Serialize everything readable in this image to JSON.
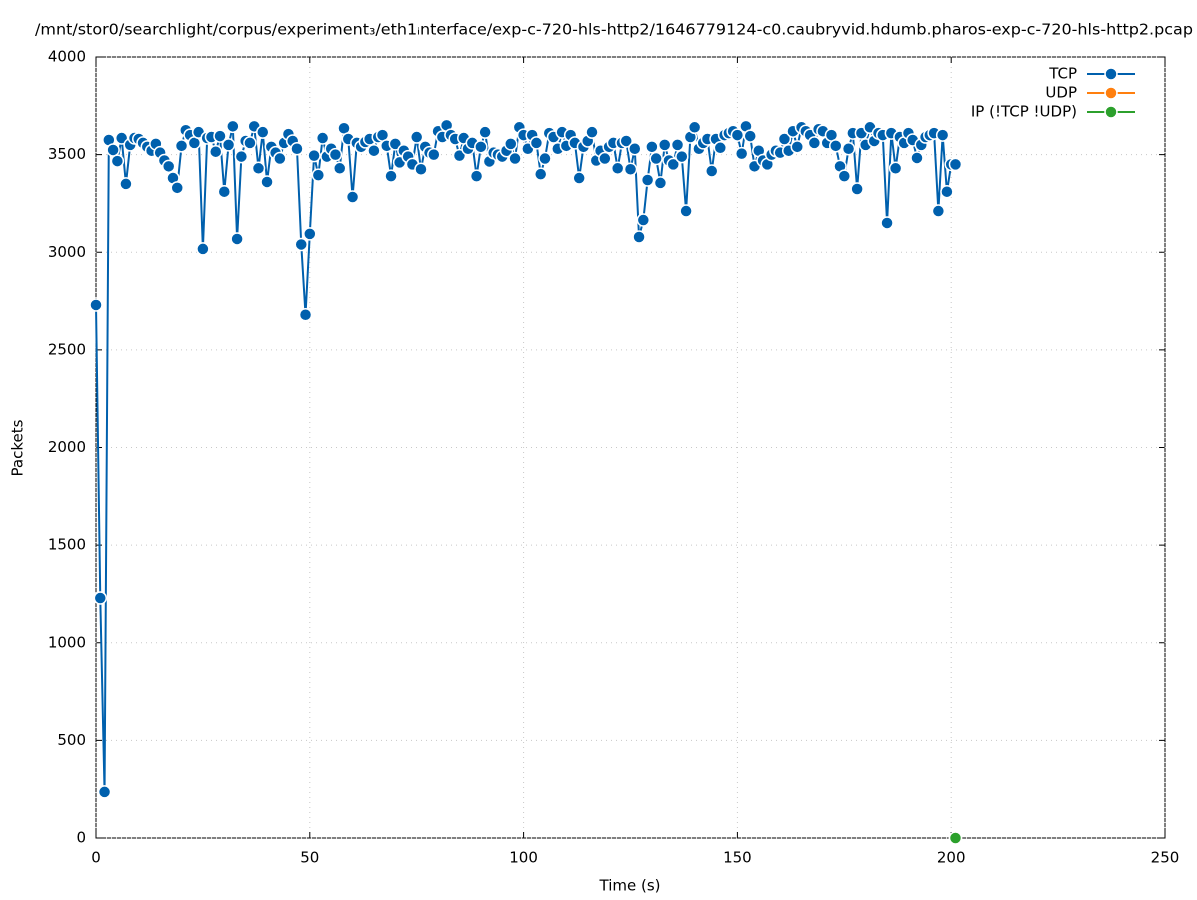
{
  "chart_data": {
    "type": "line",
    "title": "/mnt/stor0/searchlight/corpus/experiment₃/eth1ᵢnterface/exp-c-720-hls-http2/1646779124-c0.caubryvid.hdumb.pharos-exp-c-720-hls-http2.pcap",
    "xlabel": "Time (s)",
    "ylabel": "Packets",
    "xlim": [
      0,
      250
    ],
    "xticks": [
      0,
      50,
      100,
      150,
      200,
      250
    ],
    "ylim": [
      0,
      4000
    ],
    "yticks": [
      0,
      500,
      1000,
      1500,
      2000,
      2500,
      3000,
      3500,
      4000
    ],
    "grid": true,
    "legend": "top-right",
    "series": [
      {
        "name": "TCP",
        "color": "#0060ad",
        "x": [
          0,
          1,
          2,
          3,
          4,
          5,
          6,
          7,
          8,
          9,
          10,
          11,
          12,
          13,
          14,
          15,
          16,
          17,
          18,
          19,
          20,
          21,
          22,
          23,
          24,
          25,
          26,
          27,
          28,
          29,
          30,
          31,
          32,
          33,
          34,
          35,
          36,
          37,
          38,
          39,
          40,
          41,
          42,
          43,
          44,
          45,
          46,
          47,
          48,
          49,
          50,
          51,
          52,
          53,
          54,
          55,
          56,
          57,
          58,
          59,
          60,
          61,
          62,
          63,
          64,
          65,
          66,
          67,
          68,
          69,
          70,
          71,
          72,
          73,
          74,
          75,
          76,
          77,
          78,
          79,
          80,
          81,
          82,
          83,
          84,
          85,
          86,
          87,
          88,
          89,
          90,
          91,
          92,
          93,
          94,
          95,
          96,
          97,
          98,
          99,
          100,
          101,
          102,
          103,
          104,
          105,
          106,
          107,
          108,
          109,
          110,
          111,
          112,
          113,
          114,
          115,
          116,
          117,
          118,
          119,
          120,
          121,
          122,
          123,
          124,
          125,
          126,
          127,
          128,
          129,
          130,
          131,
          132,
          133,
          134,
          135,
          136,
          137,
          138,
          139,
          140,
          141,
          142,
          143,
          144,
          145,
          146,
          147,
          148,
          149,
          150,
          151,
          152,
          153,
          154,
          155,
          156,
          157,
          158,
          159,
          160,
          161,
          162,
          163,
          164,
          165,
          166,
          167,
          168,
          169,
          170,
          171,
          172,
          173,
          174,
          175,
          176,
          177,
          178,
          179,
          180,
          181,
          182,
          183,
          184,
          185,
          186,
          187,
          188,
          189,
          190,
          191,
          192,
          193,
          194,
          195,
          196,
          197,
          198,
          199,
          200,
          201
        ],
        "values": [
          2730,
          1229,
          236,
          3575,
          3524,
          3467,
          3585,
          3350,
          3550,
          3585,
          3580,
          3560,
          3540,
          3520,
          3555,
          3510,
          3470,
          3440,
          3380,
          3330,
          3545,
          3625,
          3600,
          3560,
          3615,
          3017,
          3585,
          3590,
          3515,
          3595,
          3310,
          3550,
          3645,
          3068,
          3490,
          3570,
          3560,
          3645,
          3430,
          3615,
          3360,
          3540,
          3510,
          3480,
          3560,
          3605,
          3570,
          3530,
          3040,
          2680,
          3094,
          3495,
          3395,
          3585,
          3490,
          3530,
          3500,
          3430,
          3635,
          3580,
          3283,
          3560,
          3540,
          3565,
          3580,
          3520,
          3590,
          3600,
          3545,
          3390,
          3555,
          3460,
          3520,
          3490,
          3450,
          3590,
          3425,
          3540,
          3510,
          3500,
          3620,
          3590,
          3650,
          3600,
          3580,
          3495,
          3585,
          3530,
          3560,
          3390,
          3540,
          3615,
          3465,
          3510,
          3500,
          3490,
          3520,
          3555,
          3480,
          3640,
          3600,
          3530,
          3600,
          3560,
          3400,
          3480,
          3610,
          3590,
          3530,
          3615,
          3545,
          3600,
          3560,
          3380,
          3540,
          3570,
          3615,
          3470,
          3520,
          3480,
          3540,
          3560,
          3430,
          3560,
          3570,
          3425,
          3530,
          3078,
          3165,
          3370,
          3540,
          3480,
          3355,
          3550,
          3470,
          3450,
          3550,
          3490,
          3211,
          3590,
          3640,
          3530,
          3560,
          3580,
          3416,
          3580,
          3535,
          3600,
          3610,
          3620,
          3600,
          3505,
          3645,
          3595,
          3440,
          3520,
          3470,
          3450,
          3500,
          3520,
          3510,
          3580,
          3520,
          3620,
          3540,
          3640,
          3620,
          3600,
          3560,
          3630,
          3620,
          3560,
          3600,
          3545,
          3440,
          3390,
          3530,
          3610,
          3324,
          3610,
          3550,
          3640,
          3570,
          3610,
          3600,
          3150,
          3610,
          3430,
          3590,
          3560,
          3610,
          3575,
          3483,
          3550,
          3590,
          3600,
          3610,
          3211,
          3600,
          3310,
          3450,
          3450
        ]
      },
      {
        "name": "UDP",
        "color": "#ff7f0e",
        "x": [
          201
        ],
        "values": [
          0
        ]
      },
      {
        "name": "IP (!TCP  !UDP)",
        "color": "#2ca02c",
        "x": [
          201
        ],
        "values": [
          0
        ]
      }
    ]
  }
}
